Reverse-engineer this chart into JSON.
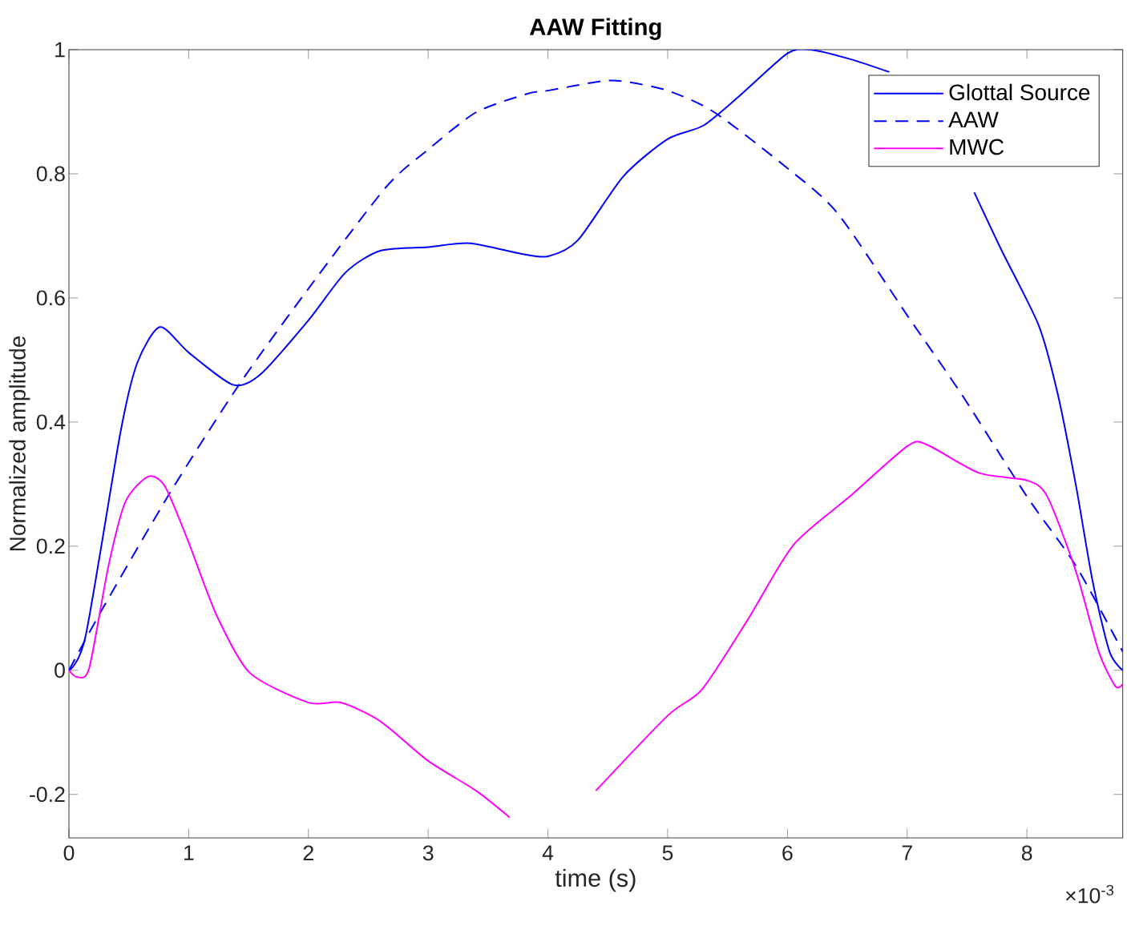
{
  "chart_data": {
    "type": "line",
    "title": "AAW Fitting",
    "xlabel": "time (s)",
    "ylabel": "Normalized amplitude",
    "annotations": [
      "×10$^{-3}$"
    ],
    "xlim": [
      0,
      8.8
    ],
    "ylim": [
      -0.27,
      1
    ],
    "xticks": [
      0,
      1,
      2,
      3,
      4,
      5,
      6,
      7,
      8
    ],
    "yticks": [
      -0.2,
      0,
      0.2,
      0.4,
      0.6,
      0.8,
      1
    ],
    "legend": "top right",
    "series": [
      {
        "name": "Glottal Source",
        "color": "#0000ff",
        "line_style": "solid",
        "x": [
          0,
          0.14,
          0.43,
          0.57,
          0.76,
          1.0,
          1.37,
          1.6,
          2.0,
          2.31,
          2.6,
          3.0,
          3.35,
          3.78,
          4.0,
          4.25,
          4.63,
          5.0,
          5.3,
          5.62,
          6.0,
          6.19,
          6.52,
          6.85,
          7.2,
          7.56,
          7.79,
          8.1,
          8.26,
          8.41,
          8.55,
          8.69,
          8.8
        ],
        "values": [
          0,
          0.056,
          0.383,
          0.495,
          0.553,
          0.512,
          0.46,
          0.477,
          0.564,
          0.641,
          0.676,
          0.682,
          0.688,
          0.671,
          0.667,
          0.693,
          0.796,
          0.856,
          0.878,
          0.929,
          0.994,
          1.0,
          0.985,
          0.964,
          null,
          0.77,
          0.676,
          0.555,
          0.443,
          0.297,
          0.142,
          0.03,
          0.0
        ]
      },
      {
        "name": "AAW",
        "color": "#0000ff",
        "line_style": "dashed",
        "x": [
          0,
          0.28,
          0.85,
          1.42,
          2.0,
          2.65,
          3.0,
          3.4,
          3.83,
          4.0,
          4.44,
          4.63,
          5.0,
          5.39,
          6.0,
          6.42,
          7.0,
          7.46,
          8.0,
          8.41,
          8.8
        ],
        "values": [
          0,
          0.099,
          0.288,
          0.46,
          0.615,
          0.779,
          0.839,
          0.899,
          0.929,
          0.934,
          0.949,
          0.949,
          0.934,
          0.899,
          0.809,
          0.736,
          0.572,
          0.443,
          0.28,
          0.168,
          0.03
        ]
      },
      {
        "name": "MWC",
        "color": "#ff00ff",
        "line_style": "solid",
        "x": [
          0,
          0.07,
          0.17,
          0.33,
          0.47,
          0.66,
          0.8,
          0.99,
          1.23,
          1.51,
          2.0,
          2.27,
          2.6,
          3.0,
          3.4,
          3.68,
          3.92,
          4.0,
          4.4,
          5.0,
          5.29,
          5.67,
          6.05,
          6.52,
          7.0,
          7.16,
          7.6,
          8.0,
          8.17,
          8.41,
          8.6,
          8.74,
          8.8
        ],
        "values": [
          0,
          -0.011,
          0.004,
          0.168,
          0.271,
          0.312,
          0.297,
          0.211,
          0.09,
          -0.004,
          -0.052,
          -0.052,
          -0.082,
          -0.146,
          -0.194,
          -0.237,
          null,
          null,
          -0.194,
          -0.073,
          -0.03,
          0.082,
          0.202,
          0.28,
          0.361,
          0.364,
          0.318,
          0.306,
          0.28,
          0.159,
          0.03,
          -0.026,
          -0.022
        ]
      }
    ]
  }
}
